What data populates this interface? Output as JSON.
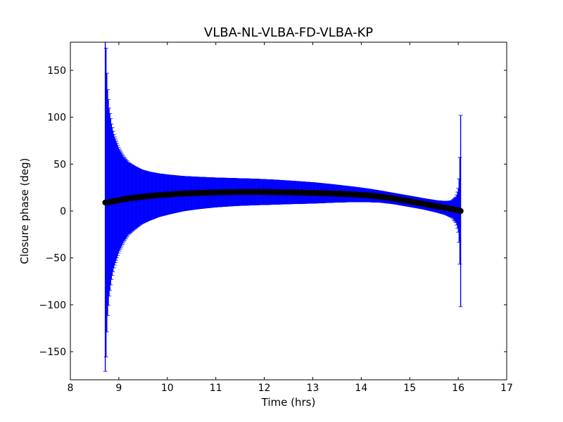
{
  "chart_data": {
    "type": "scatter",
    "title": "VLBA-NL-VLBA-FD-VLBA-KP",
    "xlabel": "Time (hrs)",
    "ylabel": "Closure phase (deg)",
    "xlim": [
      8,
      17
    ],
    "ylim": [
      -180,
      180
    ],
    "xticks": [
      8,
      9,
      10,
      11,
      12,
      13,
      14,
      15,
      16,
      17
    ],
    "xtick_labels": [
      "8",
      "9",
      "10",
      "11",
      "12",
      "13",
      "14",
      "15",
      "16",
      "17"
    ],
    "yticks": [
      -150,
      -100,
      -50,
      0,
      50,
      100,
      150
    ],
    "ytick_labels": [
      "−150",
      "−100",
      "−50",
      "0",
      "50",
      "100",
      "150"
    ],
    "grid": false,
    "legend": false,
    "series": [
      {
        "marker_color": "#000000",
        "errorbar_color": "#0000ff",
        "points": [
          {
            "x": 8.72,
            "y": 9,
            "err": 180
          },
          {
            "x": 8.73,
            "y": 9,
            "err": 175
          },
          {
            "x": 8.75,
            "y": 9,
            "err": 140
          },
          {
            "x": 8.77,
            "y": 9,
            "err": 118
          },
          {
            "x": 8.8,
            "y": 9.5,
            "err": 100
          },
          {
            "x": 8.85,
            "y": 10,
            "err": 82
          },
          {
            "x": 8.9,
            "y": 10.5,
            "err": 70
          },
          {
            "x": 9.0,
            "y": 11.5,
            "err": 55
          },
          {
            "x": 9.1,
            "y": 12.5,
            "err": 45
          },
          {
            "x": 9.2,
            "y": 13.3,
            "err": 38
          },
          {
            "x": 9.3,
            "y": 14,
            "err": 34
          },
          {
            "x": 9.45,
            "y": 15,
            "err": 29
          },
          {
            "x": 9.6,
            "y": 15.8,
            "err": 26
          },
          {
            "x": 9.8,
            "y": 16.8,
            "err": 23
          },
          {
            "x": 10.0,
            "y": 17.5,
            "err": 21
          },
          {
            "x": 10.3,
            "y": 18.5,
            "err": 18.5
          },
          {
            "x": 10.6,
            "y": 19.2,
            "err": 17
          },
          {
            "x": 11.0,
            "y": 19.8,
            "err": 15.5
          },
          {
            "x": 11.4,
            "y": 20.2,
            "err": 14.5
          },
          {
            "x": 11.8,
            "y": 20.3,
            "err": 13.8
          },
          {
            "x": 12.2,
            "y": 20.1,
            "err": 13
          },
          {
            "x": 12.6,
            "y": 19.8,
            "err": 12
          },
          {
            "x": 13.0,
            "y": 19.3,
            "err": 11
          },
          {
            "x": 13.4,
            "y": 18.7,
            "err": 9.5
          },
          {
            "x": 13.8,
            "y": 17.8,
            "err": 8
          },
          {
            "x": 14.1,
            "y": 16.8,
            "err": 7
          },
          {
            "x": 14.4,
            "y": 15.3,
            "err": 6
          },
          {
            "x": 14.7,
            "y": 13,
            "err": 5.5
          },
          {
            "x": 15.0,
            "y": 10.3,
            "err": 5.5
          },
          {
            "x": 15.3,
            "y": 7.5,
            "err": 5.5
          },
          {
            "x": 15.55,
            "y": 5,
            "err": 6
          },
          {
            "x": 15.75,
            "y": 3.2,
            "err": 7
          },
          {
            "x": 15.88,
            "y": 2,
            "err": 9
          },
          {
            "x": 15.96,
            "y": 1.2,
            "err": 14
          },
          {
            "x": 16.0,
            "y": 0.8,
            "err": 22
          },
          {
            "x": 16.02,
            "y": 0.5,
            "err": 35
          },
          {
            "x": 16.03,
            "y": 0.3,
            "err": 50
          },
          {
            "x": 16.04,
            "y": 0.2,
            "err": 67
          },
          {
            "x": 16.05,
            "y": 0,
            "err": 102
          }
        ]
      }
    ]
  }
}
